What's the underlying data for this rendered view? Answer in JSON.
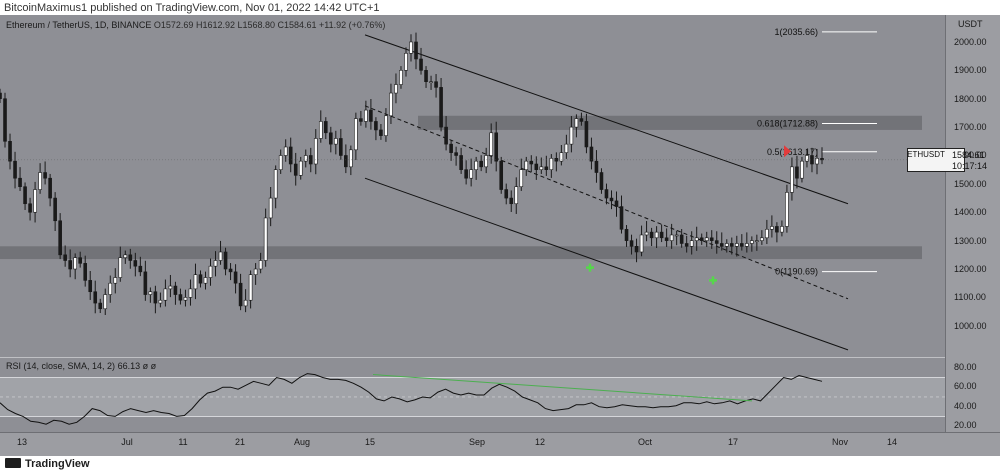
{
  "header": {
    "publisher_line": "BitcoinMaximus1 published on TradingView.com, Nov 01, 2022 14:42 UTC+1"
  },
  "legend": {
    "title": "Ethereum / TetherUS, 1D, BINANCE",
    "ohlc": "O1572.69 H1612.92 L1568.80 C1584.61 +11.92 (+0.76%)"
  },
  "rsi_legend": {
    "label": "RSI (14, close, SMA, 14, 2)",
    "value": "66.13 ø ø"
  },
  "price_tag": {
    "symbol": "ETHUSDT",
    "price": "1584.61",
    "countdown": "10:17:14"
  },
  "footer": {
    "brand": "TradingView"
  },
  "colors": {
    "background": "#8e8f95",
    "axis": "#9c9da2",
    "candle_up": "#ffffff",
    "candle_down": "#1a1a1a",
    "zone": "#6d6e73",
    "rsi_trend": "#4caf50",
    "green_marker": "#55d84a",
    "red_marker": "#e23b3b"
  },
  "chart_data": {
    "type": "candlestick",
    "symbol": "ETHUSDT",
    "timeframe": "1D",
    "unit": "USDT",
    "y_axis_ticks": [
      "2000.00",
      "1900.00",
      "1800.00",
      "1700.00",
      "1600.00",
      "1500.00",
      "1400.00",
      "1300.00",
      "1200.00",
      "1100.00",
      "1000.00"
    ],
    "x_axis_ticks": [
      "13",
      "Jul",
      "11",
      "21",
      "Aug",
      "15",
      "Sep",
      "12",
      "Oct",
      "17",
      "Nov",
      "14"
    ],
    "ylim": [
      890,
      2095
    ],
    "close_series": [
      1800,
      1650,
      1580,
      1520,
      1490,
      1430,
      1400,
      1480,
      1540,
      1520,
      1450,
      1370,
      1250,
      1230,
      1200,
      1240,
      1220,
      1160,
      1120,
      1080,
      1060,
      1110,
      1150,
      1170,
      1240,
      1250,
      1230,
      1210,
      1190,
      1110,
      1120,
      1080,
      1090,
      1130,
      1140,
      1110,
      1090,
      1100,
      1130,
      1180,
      1150,
      1170,
      1210,
      1230,
      1260,
      1200,
      1190,
      1150,
      1070,
      1090,
      1180,
      1200,
      1230,
      1380,
      1450,
      1550,
      1600,
      1630,
      1570,
      1530,
      1580,
      1600,
      1570,
      1660,
      1720,
      1680,
      1640,
      1660,
      1600,
      1560,
      1620,
      1730,
      1720,
      1760,
      1720,
      1690,
      1670,
      1740,
      1820,
      1850,
      1900,
      1960,
      2000,
      1940,
      1900,
      1860,
      1860,
      1840,
      1700,
      1640,
      1610,
      1600,
      1550,
      1520,
      1550,
      1580,
      1560,
      1600,
      1680,
      1580,
      1480,
      1450,
      1430,
      1490,
      1550,
      1580,
      1570,
      1550,
      1560,
      1550,
      1590,
      1580,
      1610,
      1640,
      1700,
      1730,
      1720,
      1630,
      1580,
      1540,
      1480,
      1450,
      1440,
      1420,
      1340,
      1300,
      1280,
      1260,
      1320,
      1330,
      1310,
      1330,
      1310,
      1300,
      1320,
      1320,
      1290,
      1280,
      1300,
      1310,
      1300,
      1310,
      1300,
      1290,
      1280,
      1290,
      1280,
      1290,
      1280,
      1290,
      1300,
      1300,
      1310,
      1340,
      1350,
      1330,
      1350,
      1470,
      1560,
      1520,
      1580,
      1600,
      1570,
      1590,
      1584.61
    ],
    "candle_x_range": [
      0,
      822
    ],
    "fib_levels": [
      {
        "ratio": "1",
        "label": "1(2035.66)",
        "price": 2035.66
      },
      {
        "ratio": "0.618",
        "label": "0.618(1712.88)",
        "price": 1712.88
      },
      {
        "ratio": "0.5",
        "label": "0.5(1613.17)",
        "price": 1613.17
      },
      {
        "ratio": "0",
        "label": "0(1190.69)",
        "price": 1190.69
      }
    ],
    "zones": [
      {
        "name": "resistance",
        "low": 1690,
        "high": 1740
      },
      {
        "name": "support",
        "low": 1235,
        "high": 1280
      }
    ],
    "channel": {
      "upper": [
        [
          365,
          2025
        ],
        [
          848,
          1430
        ]
      ],
      "lower": [
        [
          365,
          1520
        ],
        [
          848,
          915
        ]
      ],
      "middle": [
        [
          365,
          1775
        ],
        [
          848,
          1095
        ]
      ]
    },
    "markers": [
      {
        "type": "green-plus",
        "x": 590,
        "price": 1205
      },
      {
        "type": "green-plus",
        "x": 713,
        "price": 1160
      },
      {
        "type": "red-arrow",
        "x": 787,
        "price": 1615
      }
    ],
    "rsi": {
      "value": 66.13,
      "y_axis_ticks": [
        "80.00",
        "60.00",
        "40.00",
        "20.00"
      ],
      "ylim": [
        13,
        90
      ],
      "band": [
        30,
        70
      ],
      "series": [
        44,
        37,
        33,
        30,
        25,
        24,
        22,
        26,
        25,
        22,
        24,
        30,
        38,
        36,
        31,
        30,
        35,
        38,
        36,
        34,
        36,
        34,
        33,
        30,
        31,
        38,
        47,
        54,
        56,
        60,
        60,
        58,
        62,
        66,
        64,
        62,
        70,
        68,
        64,
        70,
        74,
        73,
        70,
        68,
        68,
        67,
        64,
        60,
        55,
        48,
        46,
        50,
        48,
        45,
        47,
        50,
        49,
        55,
        58,
        54,
        52,
        54,
        52,
        52,
        59,
        63,
        60,
        56,
        50,
        47,
        44,
        38,
        36,
        37,
        38,
        42,
        42,
        44,
        40,
        39,
        40,
        42,
        41,
        40,
        40,
        39,
        40,
        40,
        41,
        44,
        44,
        43,
        45,
        43,
        44,
        46,
        43,
        46,
        48,
        46,
        54,
        62,
        70,
        68,
        72,
        70,
        68,
        66.13
      ],
      "trendline": [
        [
          373,
          73
        ],
        [
          752,
          46
        ]
      ]
    }
  }
}
